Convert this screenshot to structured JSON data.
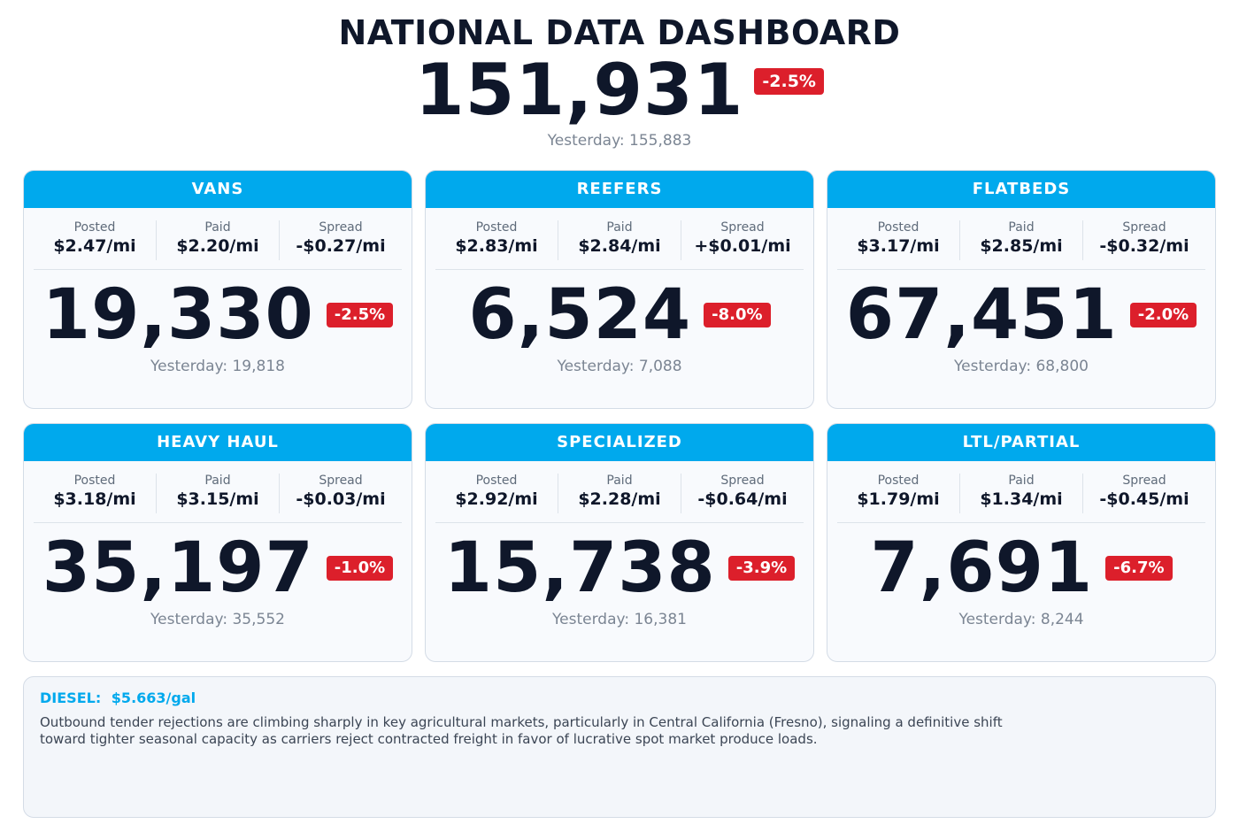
{
  "header": {
    "title": "NATIONAL DATA DASHBOARD",
    "total": "151,931",
    "change": "-2.5%",
    "yesterday": "Yesterday: 155,883"
  },
  "labels": {
    "posted": "Posted",
    "paid": "Paid",
    "spread": "Spread"
  },
  "cards": [
    {
      "name": "VANS",
      "posted": "$2.47/mi",
      "paid": "$2.20/mi",
      "spread": "-$0.27/mi",
      "value": "19,330",
      "change": "-2.5%",
      "yesterday": "Yesterday: 19,818"
    },
    {
      "name": "REEFERS",
      "posted": "$2.83/mi",
      "paid": "$2.84/mi",
      "spread": "+$0.01/mi",
      "value": "6,524",
      "change": "-8.0%",
      "yesterday": "Yesterday: 7,088"
    },
    {
      "name": "FLATBEDS",
      "posted": "$3.17/mi",
      "paid": "$2.85/mi",
      "spread": "-$0.32/mi",
      "value": "67,451",
      "change": "-2.0%",
      "yesterday": "Yesterday: 68,800"
    },
    {
      "name": "HEAVY HAUL",
      "posted": "$3.18/mi",
      "paid": "$3.15/mi",
      "spread": "-$0.03/mi",
      "value": "35,197",
      "change": "-1.0%",
      "yesterday": "Yesterday: 35,552"
    },
    {
      "name": "SPECIALIZED",
      "posted": "$2.92/mi",
      "paid": "$2.28/mi",
      "spread": "-$0.64/mi",
      "value": "15,738",
      "change": "-3.9%",
      "yesterday": "Yesterday: 16,381"
    },
    {
      "name": "LTL/PARTIAL",
      "posted": "$1.79/mi",
      "paid": "$1.34/mi",
      "spread": "-$0.45/mi",
      "value": "7,691",
      "change": "-6.7%",
      "yesterday": "Yesterday: 8,244"
    }
  ],
  "notes": {
    "diesel_label": "DIESEL:",
    "diesel_value": "$5.663/gal",
    "text": "Outbound tender rejections are climbing sharply in key agricultural markets, particularly in Central California (Fresno), signaling a definitive shift toward tighter seasonal capacity as carriers reject contracted freight in favor of lucrative spot market produce loads."
  },
  "colors": {
    "accent": "#00a9ed",
    "negative": "#dc1f2b",
    "text": "#0f172a",
    "muted": "#7b8593"
  }
}
